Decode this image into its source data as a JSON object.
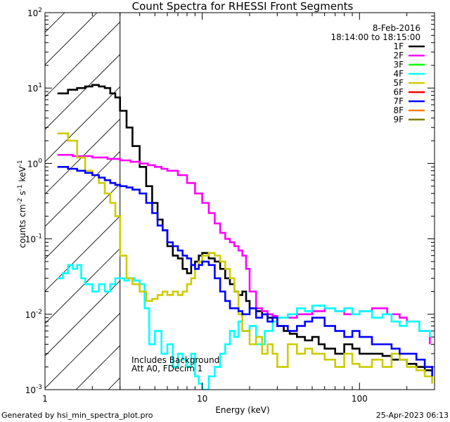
{
  "chart_data": {
    "type": "line",
    "title": "Count Spectra for RHESSI Front Segments",
    "xlabel": "Energy (keV)",
    "ylabel": "counts cm^-2 s^-1 keV^-1",
    "xscale": "log",
    "yscale": "log",
    "xlim": [
      1,
      300
    ],
    "ylim": [
      0.001,
      100
    ],
    "x_ticks": [
      "1",
      "10",
      "100"
    ],
    "y_ticks": [
      "10^-3",
      "10^-2",
      "10^-1",
      "10^0",
      "10^1",
      "10^2"
    ],
    "date": "8-Feb-2016",
    "time_range": "18:14:00 to 18:15:00",
    "annotation_line1": "Includes Background",
    "annotation_line2": "Att A0, FDecim 1",
    "hatched_region_kev": [
      1,
      3
    ],
    "legend": [
      {
        "name": "1F",
        "color": "#000000"
      },
      {
        "name": "2F",
        "color": "#ff00ff"
      },
      {
        "name": "3F",
        "color": "#00ff00"
      },
      {
        "name": "4F",
        "color": "#00ffff"
      },
      {
        "name": "5F",
        "color": "#cccc00"
      },
      {
        "name": "6F",
        "color": "#ff0000"
      },
      {
        "name": "7F",
        "color": "#0000ff"
      },
      {
        "name": "8F",
        "color": "#ff8000"
      },
      {
        "name": "9F",
        "color": "#808000"
      }
    ],
    "series": [
      {
        "name": "1F",
        "color": "#000000",
        "x": [
          1.2,
          1.4,
          1.6,
          1.8,
          2.0,
          2.2,
          2.4,
          2.6,
          2.8,
          3.0,
          3.3,
          3.6,
          4.0,
          4.4,
          4.8,
          5.2,
          5.6,
          6.0,
          6.5,
          7.0,
          7.5,
          8.0,
          8.5,
          9.0,
          9.5,
          10,
          11,
          12,
          13,
          14,
          15,
          16,
          17,
          18,
          19,
          20,
          22,
          24,
          26,
          28,
          30,
          33,
          36,
          40,
          45,
          50,
          55,
          60,
          70,
          80,
          90,
          100,
          120,
          140,
          160,
          180,
          200,
          230,
          260,
          290
        ],
        "y": [
          8.5,
          9.5,
          10,
          10.5,
          11,
          10.5,
          10,
          8.5,
          7.5,
          5,
          3,
          1.7,
          0.9,
          0.5,
          0.3,
          0.18,
          0.13,
          0.08,
          0.06,
          0.055,
          0.04,
          0.035,
          0.045,
          0.05,
          0.06,
          0.065,
          0.055,
          0.05,
          0.04,
          0.03,
          0.025,
          0.02,
          0.018,
          0.02,
          0.015,
          0.012,
          0.011,
          0.01,
          0.009,
          0.008,
          0.007,
          0.006,
          0.0055,
          0.005,
          0.0045,
          0.005,
          0.004,
          0.0035,
          0.003,
          0.004,
          0.0035,
          0.003,
          0.003,
          0.0028,
          0.0025,
          0.0025,
          0.0022,
          0.002,
          0.0018,
          0.0012
        ]
      },
      {
        "name": "2F",
        "color": "#ff00ff",
        "x": [
          1.2,
          1.5,
          2.0,
          2.5,
          3.0,
          3.5,
          4.0,
          4.5,
          5.0,
          5.5,
          6.0,
          7.0,
          8.0,
          9.0,
          10,
          11,
          12,
          13,
          14,
          15,
          16,
          17,
          18,
          19,
          20,
          22,
          24,
          26,
          28,
          30,
          35,
          40,
          50,
          60,
          70,
          80,
          100,
          120,
          150,
          180,
          200,
          240,
          280
        ],
        "y": [
          1.3,
          1.25,
          1.2,
          1.15,
          1.1,
          1.05,
          1.0,
          0.95,
          0.9,
          0.85,
          0.8,
          0.7,
          0.55,
          0.4,
          0.3,
          0.22,
          0.16,
          0.12,
          0.1,
          0.09,
          0.08,
          0.07,
          0.06,
          0.04,
          0.02,
          0.012,
          0.011,
          0.01,
          0.0095,
          0.009,
          0.009,
          0.01,
          0.011,
          0.012,
          0.011,
          0.01,
          0.011,
          0.012,
          0.01,
          0.009,
          0.008,
          0.006,
          0.004
        ]
      },
      {
        "name": "4F",
        "color": "#00ffff",
        "x": [
          1.2,
          1.3,
          1.4,
          1.5,
          1.6,
          1.7,
          1.8,
          2.0,
          2.2,
          2.4,
          2.6,
          2.8,
          3.0,
          3.2,
          3.4,
          3.7,
          4.0,
          4.3,
          4.6,
          5.0,
          5.5,
          6.0,
          6.5,
          7.0,
          7.5,
          8.0,
          8.5,
          9.0,
          9.5,
          10,
          11,
          12,
          13,
          14,
          15,
          16,
          17,
          18,
          20,
          22,
          25,
          28,
          30,
          35,
          40,
          45,
          50,
          60,
          70,
          80,
          90,
          100,
          120,
          140,
          160,
          180,
          200,
          240,
          280
        ],
        "y": [
          0.03,
          0.035,
          0.045,
          0.04,
          0.045,
          0.03,
          0.025,
          0.02,
          0.025,
          0.02,
          0.025,
          0.03,
          0.03,
          0.028,
          0.03,
          0.028,
          0.025,
          0.012,
          0.004,
          0.006,
          0.003,
          0.004,
          0.002,
          0.003,
          0.0025,
          0.002,
          0.003,
          0.0015,
          0.0012,
          0.001,
          0.0015,
          0.002,
          0.003,
          0.004,
          0.006,
          0.005,
          0.008,
          0.006,
          0.007,
          0.004,
          0.006,
          0.008,
          0.009,
          0.01,
          0.012,
          0.011,
          0.013,
          0.012,
          0.011,
          0.012,
          0.01,
          0.011,
          0.009,
          0.01,
          0.008,
          0.007,
          0.008,
          0.006,
          0.005
        ]
      },
      {
        "name": "5F",
        "color": "#cccc00",
        "x": [
          1.2,
          1.4,
          1.6,
          1.8,
          2.0,
          2.2,
          2.4,
          2.6,
          2.8,
          3.0,
          3.3,
          3.6,
          4.0,
          4.4,
          4.8,
          5.2,
          5.6,
          6.0,
          6.5,
          7.0,
          7.5,
          8.0,
          8.5,
          9.0,
          9.5,
          10,
          11,
          12,
          13,
          14,
          15,
          16,
          17,
          18,
          20,
          22,
          24,
          26,
          28,
          30,
          35,
          40,
          45,
          50,
          60,
          70,
          80,
          90,
          100,
          120,
          140,
          160,
          180,
          200,
          230,
          260,
          290
        ],
        "y": [
          2.5,
          2.0,
          1.2,
          0.8,
          0.7,
          0.55,
          0.4,
          0.3,
          0.2,
          0.06,
          0.03,
          0.025,
          0.02,
          0.015,
          0.016,
          0.018,
          0.02,
          0.018,
          0.02,
          0.018,
          0.02,
          0.025,
          0.03,
          0.04,
          0.05,
          0.06,
          0.065,
          0.06,
          0.05,
          0.04,
          0.03,
          0.02,
          0.01,
          0.006,
          0.004,
          0.005,
          0.003,
          0.004,
          0.003,
          0.002,
          0.004,
          0.003,
          0.0035,
          0.003,
          0.0025,
          0.002,
          0.003,
          0.0022,
          0.002,
          0.0025,
          0.002,
          0.003,
          0.0025,
          0.002,
          0.0018,
          0.0015,
          0.0012
        ]
      },
      {
        "name": "7F",
        "color": "#0000ff",
        "x": [
          1.2,
          1.4,
          1.6,
          1.8,
          2.0,
          2.2,
          2.4,
          2.6,
          2.8,
          3.0,
          3.3,
          3.6,
          4.0,
          4.4,
          4.8,
          5.2,
          5.6,
          6.0,
          6.5,
          7.0,
          7.5,
          8.0,
          8.5,
          9.0,
          9.5,
          10,
          11,
          12,
          13,
          14,
          15,
          16,
          17,
          18,
          20,
          22,
          24,
          26,
          28,
          30,
          35,
          40,
          45,
          50,
          60,
          70,
          80,
          90,
          100,
          120,
          140,
          160,
          180,
          200,
          230,
          260,
          290
        ],
        "y": [
          0.9,
          0.85,
          0.8,
          0.75,
          0.7,
          0.65,
          0.6,
          0.55,
          0.52,
          0.5,
          0.48,
          0.45,
          0.4,
          0.3,
          0.22,
          0.15,
          0.13,
          0.09,
          0.08,
          0.07,
          0.06,
          0.055,
          0.045,
          0.04,
          0.045,
          0.05,
          0.045,
          0.03,
          0.02,
          0.015,
          0.012,
          0.012,
          0.011,
          0.01,
          0.012,
          0.009,
          0.01,
          0.008,
          0.009,
          0.007,
          0.006,
          0.007,
          0.008,
          0.009,
          0.007,
          0.006,
          0.005,
          0.006,
          0.005,
          0.004,
          0.004,
          0.0035,
          0.003,
          0.003,
          0.0025,
          0.002,
          0.0015
        ]
      }
    ]
  },
  "footer": {
    "generated_by": "Generated by hsi_min_spectra_plot.pro",
    "timestamp": "25-Apr-2023 06:13"
  },
  "colors": {
    "background": "#ffffff",
    "axes": "#000000"
  }
}
